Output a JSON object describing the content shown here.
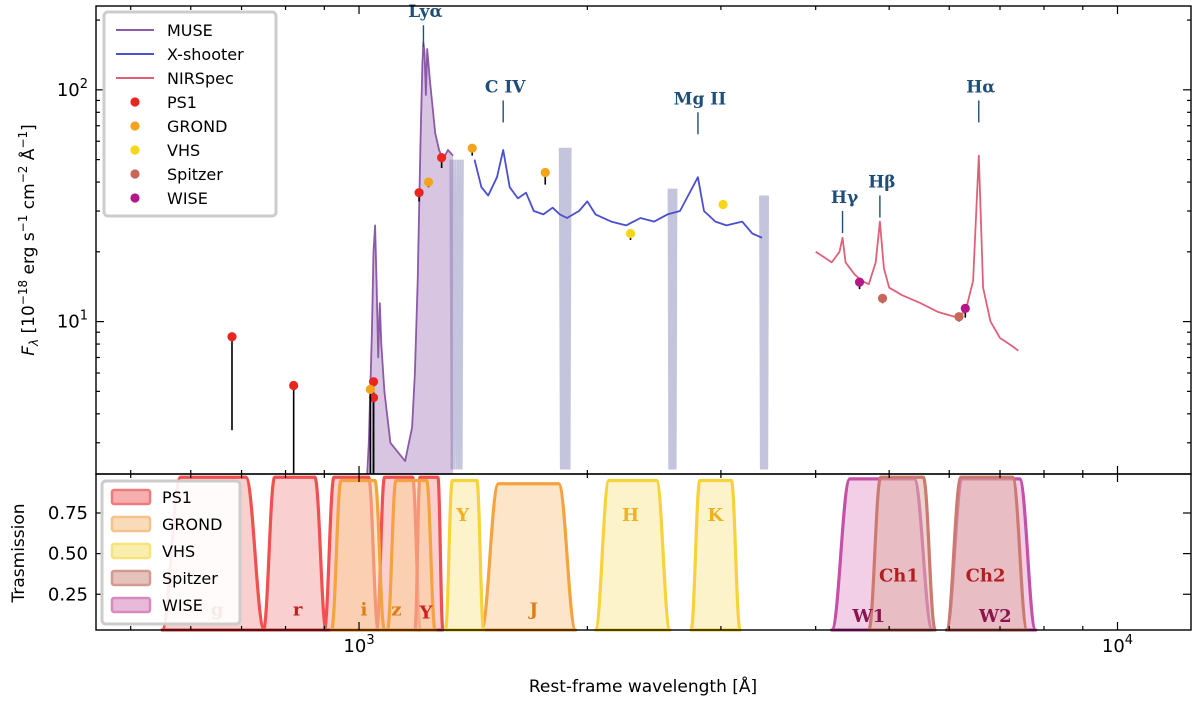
{
  "chart_data": [
    {
      "type": "line",
      "panel": "top",
      "xscale": "log",
      "yscale": "log",
      "xlim": [
        450,
        12500
      ],
      "ylim": [
        2.2,
        230
      ],
      "ylabel_sym": "F",
      "ylabel_sub": "λ",
      "ylabel_unit_a": " [10",
      "ylabel_exp1": "−18",
      "ylabel_unit_b": " erg s",
      "ylabel_exp2": "−1",
      "ylabel_unit_c": " cm",
      "ylabel_exp3": "−2",
      "ylabel_unit_d": " Å",
      "ylabel_exp4": "−1",
      "ylabel_unit_e": "]",
      "yticks": [
        {
          "value": 10,
          "base": "10",
          "exp": "1"
        },
        {
          "value": 100,
          "base": "10",
          "exp": "2"
        }
      ],
      "legend": {
        "placement": "top-left",
        "entries": [
          {
            "label": "MUSE",
            "kind": "line",
            "color": "#8c5aa8"
          },
          {
            "label": "X-shooter",
            "kind": "line",
            "color": "#4a4fcf"
          },
          {
            "label": "NIRSpec",
            "kind": "line",
            "color": "#e0607a"
          },
          {
            "label": "PS1",
            "kind": "dot",
            "color": "#e8261e"
          },
          {
            "label": "GROND",
            "kind": "dot",
            "color": "#f5a31a"
          },
          {
            "label": "VHS",
            "kind": "dot",
            "color": "#f7d615"
          },
          {
            "label": "Spitzer",
            "kind": "dot",
            "color": "#c8665a"
          },
          {
            "label": "WISE",
            "kind": "dot",
            "color": "#b5178a"
          }
        ]
      },
      "annotations": [
        {
          "text": "Lyα",
          "x": 1216,
          "y": 190
        },
        {
          "text": "C IV",
          "x": 1549,
          "y": 90
        },
        {
          "text": "Mg II",
          "x": 2798,
          "y": 80
        },
        {
          "text": "Hγ",
          "x": 4340,
          "y": 30
        },
        {
          "text": "Hβ",
          "x": 4861,
          "y": 35
        },
        {
          "text": "Hα",
          "x": 6563,
          "y": 90
        }
      ],
      "spectra": [
        {
          "name": "MUSE",
          "color": "#8c5aa8",
          "points": [
            [
              1025,
              1.0
            ],
            [
              1030,
              3.0
            ],
            [
              1040,
              9.0
            ],
            [
              1045,
              20.0
            ],
            [
              1050,
              26.0
            ],
            [
              1055,
              14.0
            ],
            [
              1060,
              7.0
            ],
            [
              1065,
              12.0
            ],
            [
              1070,
              8.0
            ],
            [
              1080,
              5.0
            ],
            [
              1100,
              3.0
            ],
            [
              1150,
              2.5
            ],
            [
              1175,
              3.5
            ],
            [
              1185,
              6.0
            ],
            [
              1195,
              15.0
            ],
            [
              1205,
              60.0
            ],
            [
              1212,
              130.0
            ],
            [
              1216,
              160.0
            ],
            [
              1220,
              145.0
            ],
            [
              1225,
              95.0
            ],
            [
              1230,
              150.0
            ],
            [
              1240,
              110.0
            ],
            [
              1250,
              85.0
            ],
            [
              1260,
              65.0
            ],
            [
              1275,
              55.0
            ],
            [
              1290,
              50.0
            ],
            [
              1310,
              55.0
            ],
            [
              1330,
              52.0
            ]
          ]
        },
        {
          "name": "X-shooter",
          "color": "#4a4fcf",
          "points": [
            [
              1420,
              50.0
            ],
            [
              1450,
              38.0
            ],
            [
              1480,
              35.0
            ],
            [
              1520,
              42.0
            ],
            [
              1549,
              55.0
            ],
            [
              1580,
              38.0
            ],
            [
              1620,
              34.0
            ],
            [
              1660,
              36.0
            ],
            [
              1700,
              30.0
            ],
            [
              1750,
              29.0
            ],
            [
              1800,
              31.0
            ],
            [
              1840,
              29.0
            ],
            [
              1880,
              28.0
            ],
            [
              1950,
              30.0
            ],
            [
              2000,
              33.0
            ],
            [
              2050,
              29.0
            ],
            [
              2150,
              27.0
            ],
            [
              2250,
              26.0
            ],
            [
              2350,
              28.0
            ],
            [
              2450,
              27.0
            ],
            [
              2550,
              29.0
            ],
            [
              2650,
              30.0
            ],
            [
              2798,
              42.0
            ],
            [
              2850,
              30.0
            ],
            [
              2950,
              27.0
            ],
            [
              3050,
              26.0
            ],
            [
              3200,
              27.0
            ],
            [
              3300,
              24.0
            ],
            [
              3400,
              23.0
            ]
          ]
        },
        {
          "name": "NIRSpec",
          "color": "#e0607a",
          "points": [
            [
              4000,
              20.0
            ],
            [
              4100,
              19.0
            ],
            [
              4200,
              18.0
            ],
            [
              4300,
              20.0
            ],
            [
              4340,
              23.0
            ],
            [
              4380,
              18.0
            ],
            [
              4500,
              16.0
            ],
            [
              4600,
              15.0
            ],
            [
              4700,
              14.5
            ],
            [
              4800,
              18.0
            ],
            [
              4861,
              27.0
            ],
            [
              4920,
              17.0
            ],
            [
              5000,
              14.0
            ],
            [
              5200,
              13.0
            ],
            [
              5500,
              12.0
            ],
            [
              5800,
              11.0
            ],
            [
              6100,
              10.5
            ],
            [
              6300,
              11.0
            ],
            [
              6450,
              15.0
            ],
            [
              6563,
              52.0
            ],
            [
              6650,
              14.0
            ],
            [
              6800,
              10.0
            ],
            [
              7000,
              8.5
            ],
            [
              7200,
              8.0
            ],
            [
              7400,
              7.5
            ]
          ]
        }
      ],
      "telluric": {
        "color": "#c4c4dc",
        "bands": [
          [
            1320,
            1370
          ],
          [
            1840,
            1900
          ],
          [
            2560,
            2620
          ],
          [
            3380,
            3460
          ]
        ]
      },
      "photometry": [
        {
          "survey": "PS1",
          "color": "#e8261e",
          "points": [
            {
              "x": 680,
              "y": 8.6,
              "lo": 3.4
            },
            {
              "x": 820,
              "y": 5.3,
              "lo": 2.2
            },
            {
              "x": 1045,
              "y": 5.5,
              "lo": 2.2
            },
            {
              "x": 1045,
              "y": 4.7,
              "lo": 2.2
            },
            {
              "x": 1200,
              "y": 36.0,
              "lo": 33.0
            },
            {
              "x": 1285,
              "y": 51.0,
              "lo": 46.0
            }
          ]
        },
        {
          "survey": "GROND",
          "color": "#f5a31a",
          "points": [
            {
              "x": 1035,
              "y": 5.1,
              "lo": 2.2
            },
            {
              "x": 1235,
              "y": 40.0,
              "lo": 38.0
            },
            {
              "x": 1410,
              "y": 56.0,
              "lo": 52.0
            },
            {
              "x": 1760,
              "y": 44.0,
              "lo": 39.0
            }
          ]
        },
        {
          "survey": "VHS",
          "color": "#f7d615",
          "points": [
            {
              "x": 2280,
              "y": 24.0,
              "lo": 22.5
            },
            {
              "x": 3020,
              "y": 32.0,
              "lo": 31.0
            }
          ]
        },
        {
          "survey": "Spitzer",
          "color": "#c8665a",
          "points": [
            {
              "x": 4900,
              "y": 12.6,
              "lo": 12.0
            },
            {
              "x": 6180,
              "y": 10.5,
              "lo": 10.0
            }
          ]
        },
        {
          "survey": "WISE",
          "color": "#b5178a",
          "points": [
            {
              "x": 4570,
              "y": 14.8,
              "lo": 13.8
            },
            {
              "x": 6300,
              "y": 11.4,
              "lo": 10.4
            }
          ]
        }
      ]
    },
    {
      "type": "area",
      "panel": "bottom",
      "xscale": "log",
      "xlim": [
        450,
        12500
      ],
      "ylim": [
        0.03,
        0.99
      ],
      "xlabel": "Rest-frame wavelength [Å]",
      "ylabel": "Trasmission",
      "yticks": [
        "0.25",
        "0.50",
        "0.75"
      ],
      "xticks": [
        {
          "value": 1000,
          "base": "10",
          "exp": "3"
        },
        {
          "value": 10000,
          "base": "10",
          "exp": "4"
        }
      ],
      "legend": {
        "placement": "top-left",
        "entries": [
          {
            "label": "PS1",
            "color": "#f07a7a"
          },
          {
            "label": "GROND",
            "color": "#f5c38a"
          },
          {
            "label": "VHS",
            "color": "#f7e37a"
          },
          {
            "label": "Spitzer",
            "color": "#d49a90"
          },
          {
            "label": "WISE",
            "color": "#d88ac0"
          }
        ]
      },
      "filters": [
        {
          "label": "g",
          "survey": "PS1",
          "stroke": "#f05050",
          "fill": "#f5a8a8",
          "lo": 550,
          "hi": 750,
          "peak": 0.97,
          "label_x": 650,
          "label_y": 0.12,
          "label_color": "#c02020"
        },
        {
          "label": "r",
          "survey": "PS1",
          "stroke": "#f05050",
          "fill": "#f5a8a8",
          "lo": 748,
          "hi": 905,
          "peak": 0.97,
          "label_x": 830,
          "label_y": 0.12,
          "label_color": "#c02020"
        },
        {
          "label": "i",
          "survey": "PS1",
          "stroke": "#f05050",
          "fill": "#f5a8a8",
          "lo": 900,
          "hi": 1060,
          "peak": 0.97,
          "label_x": 1015,
          "label_y": 0.12,
          "label_color": "#e07a18"
        },
        {
          "label": "z",
          "survey": "PS1",
          "stroke": "#f05050",
          "fill": "#f5a8a8",
          "lo": 1055,
          "hi": 1205,
          "peak": 0.97,
          "label_x": 1120,
          "label_y": 0.12,
          "label_color": "#e07a18"
        },
        {
          "label": "Y",
          "survey": "PS1",
          "stroke": "#f05050",
          "fill": "#f5a8a8",
          "lo": 1185,
          "hi": 1290,
          "peak": 0.97,
          "label_x": 1225,
          "label_y": 0.1,
          "label_color": "#d02020"
        },
        {
          "label": "",
          "survey": "GROND",
          "stroke": "#f5a340",
          "fill": "#f9d09a",
          "lo": 920,
          "hi": 1080,
          "peak": 0.95,
          "label_x": 0,
          "label_y": 0,
          "label_color": ""
        },
        {
          "label": "",
          "survey": "GROND",
          "stroke": "#f5a340",
          "fill": "#f9d09a",
          "lo": 1090,
          "hi": 1260,
          "peak": 0.95,
          "label_x": 0,
          "label_y": 0,
          "label_color": ""
        },
        {
          "label": "J",
          "survey": "GROND",
          "stroke": "#f5a340",
          "fill": "#f9d09a",
          "lo": 1450,
          "hi": 1930,
          "peak": 0.93,
          "label_x": 1700,
          "label_y": 0.12,
          "label_color": "#e07a18"
        },
        {
          "label": "Y",
          "survey": "VHS",
          "stroke": "#f7d23a",
          "fill": "#faeaa0",
          "lo": 1300,
          "hi": 1460,
          "peak": 0.95,
          "label_x": 1370,
          "label_y": 0.7,
          "label_color": "#f0b020"
        },
        {
          "label": "H",
          "survey": "VHS",
          "stroke": "#f7d23a",
          "fill": "#faeaa0",
          "lo": 2050,
          "hi": 2570,
          "peak": 0.95,
          "label_x": 2280,
          "label_y": 0.7,
          "label_color": "#f0b020"
        },
        {
          "label": "K",
          "survey": "VHS",
          "stroke": "#f7d23a",
          "fill": "#faeaa0",
          "lo": 2740,
          "hi": 3180,
          "peak": 0.95,
          "label_x": 2950,
          "label_y": 0.7,
          "label_color": "#f0b020"
        },
        {
          "label": "W1",
          "survey": "WISE",
          "stroke": "#c450a8",
          "fill": "#e8a8d4",
          "lo": 4200,
          "hi": 5700,
          "peak": 0.96,
          "label_x": 4700,
          "label_y": 0.08,
          "label_color": "#8a1450"
        },
        {
          "label": "W2",
          "survey": "WISE",
          "stroke": "#c450a8",
          "fill": "#e8a8d4",
          "lo": 5950,
          "hi": 7800,
          "peak": 0.96,
          "label_x": 6900,
          "label_y": 0.08,
          "label_color": "#8a1450"
        },
        {
          "label": "Ch1",
          "survey": "Spitzer",
          "stroke": "#cc7a70",
          "fill": "#e0b0a8",
          "lo": 4700,
          "hi": 5750,
          "peak": 0.97,
          "label_x": 5150,
          "label_y": 0.33,
          "label_color": "#b02020"
        },
        {
          "label": "Ch2",
          "survey": "Spitzer",
          "stroke": "#cc7a70",
          "fill": "#e0b0a8",
          "lo": 5950,
          "hi": 7600,
          "peak": 0.97,
          "label_x": 6700,
          "label_y": 0.33,
          "label_color": "#b02020"
        }
      ]
    }
  ]
}
